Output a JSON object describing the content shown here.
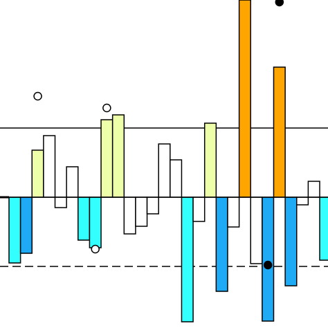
{
  "chart_data": {
    "type": "bar",
    "categories": [
      null,
      null,
      null,
      null,
      null,
      null,
      null,
      null,
      null,
      null,
      null,
      null,
      null,
      null,
      null,
      null,
      null,
      null,
      null,
      null,
      null,
      null,
      null,
      null,
      null,
      null,
      null,
      null
    ],
    "values": [
      -9.5,
      -8.1,
      6.8,
      8.9,
      -1.5,
      4.4,
      -6.2,
      -7.3,
      11.2,
      11.9,
      -5.3,
      -4.2,
      -2.4,
      7.7,
      5.4,
      -18,
      -3.5,
      10.7,
      -13.6,
      -4.3,
      28.5,
      -9.6,
      -17.9,
      18.8,
      -12.8,
      -1.1,
      2.3,
      -9.1
    ],
    "colors": [
      "#33ffff",
      "#1eaaf5",
      "#eeffaa",
      "#ffffff",
      "#ffffff",
      "#ffffff",
      "#33ffff",
      "#33ffff",
      "#eeffaa",
      "#eeffaa",
      "#ffffff",
      "#ffffff",
      "#ffffff",
      "#ffffff",
      "#ffffff",
      "#33ffff",
      "#ffffff",
      "#eeffaa",
      "#1eaaf5",
      "#ffffff",
      "#ffa500",
      "#ffffff",
      "#1eaaf5",
      "#ffa500",
      "#1eaaf5",
      "#ffffff",
      "#ffffff",
      "#33ffff"
    ],
    "markers": [
      {
        "style": "open",
        "values": [
          null,
          null,
          14.6,
          null,
          null,
          null,
          null,
          -7.5,
          12.9,
          null,
          null,
          null,
          null,
          null,
          null,
          null,
          null,
          null,
          null,
          null,
          null,
          null,
          null,
          null,
          null,
          null,
          null,
          null
        ]
      },
      {
        "style": "filled",
        "values": [
          null,
          null,
          null,
          null,
          null,
          null,
          null,
          null,
          null,
          null,
          null,
          null,
          null,
          null,
          null,
          null,
          null,
          null,
          null,
          null,
          null,
          null,
          -9.8,
          28.2,
          null,
          null,
          null,
          null
        ]
      }
    ],
    "hlines": [
      {
        "value": 10,
        "style": "solid"
      },
      {
        "value": -10,
        "style": "dashed"
      }
    ],
    "ylim": [
      -18.9,
      28.5
    ]
  }
}
